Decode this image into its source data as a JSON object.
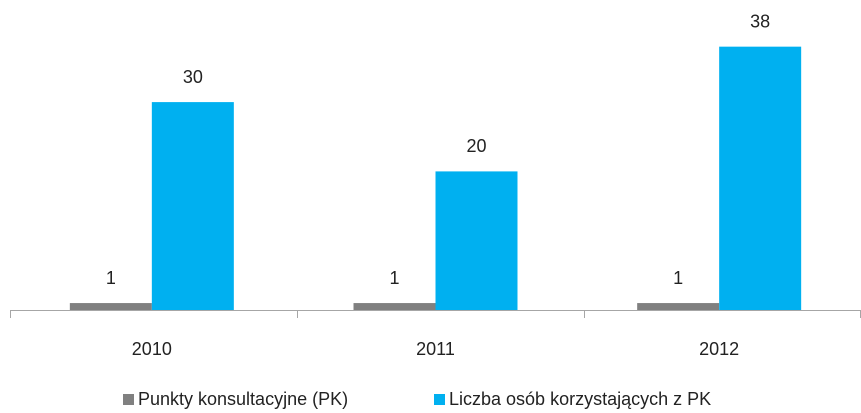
{
  "chart_data": {
    "type": "bar",
    "categories": [
      "2010",
      "2011",
      "2012"
    ],
    "series": [
      {
        "name": "Punkty konsultacyjne (PK)",
        "color": "#808080",
        "values": [
          1,
          1,
          1
        ]
      },
      {
        "name": "Liczba osób korzystających z PK",
        "color": "#00b0f0",
        "values": [
          30,
          20,
          38
        ]
      }
    ]
  }
}
